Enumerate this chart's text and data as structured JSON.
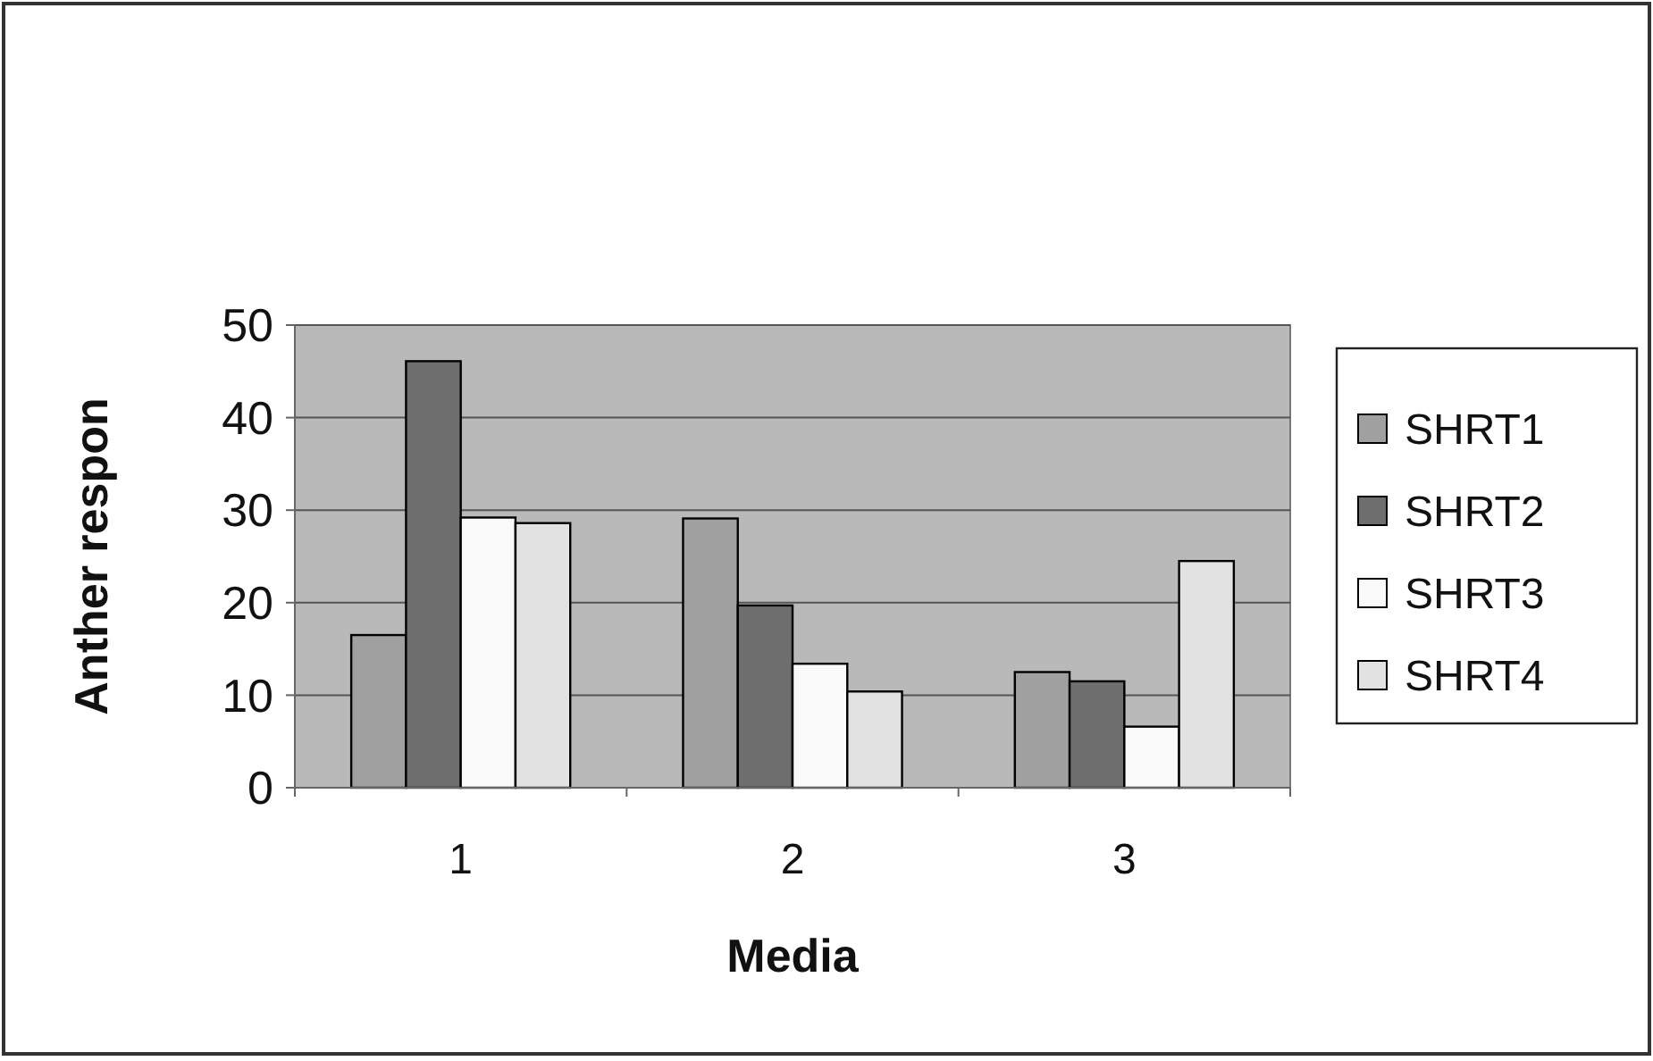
{
  "chart_data": {
    "type": "bar",
    "xlabel": "Media",
    "ylabel": "Anther respon",
    "categories": [
      "1",
      "2",
      "3"
    ],
    "series": [
      {
        "name": "SHRT1",
        "color": "#a0a0a0",
        "values": [
          16.5,
          29.1,
          12.5
        ]
      },
      {
        "name": "SHRT2",
        "color": "#6e6e6e",
        "values": [
          46.1,
          19.7,
          11.5
        ]
      },
      {
        "name": "SHRT3",
        "color": "#fafafa",
        "values": [
          29.2,
          13.4,
          6.6
        ]
      },
      {
        "name": "SHRT4",
        "color": "#e2e2e2",
        "values": [
          28.6,
          10.4,
          24.5
        ]
      }
    ],
    "ylim": [
      0,
      50
    ],
    "yticks": [
      0,
      10,
      20,
      30,
      40,
      50
    ],
    "grid": "y",
    "legend": "right"
  }
}
